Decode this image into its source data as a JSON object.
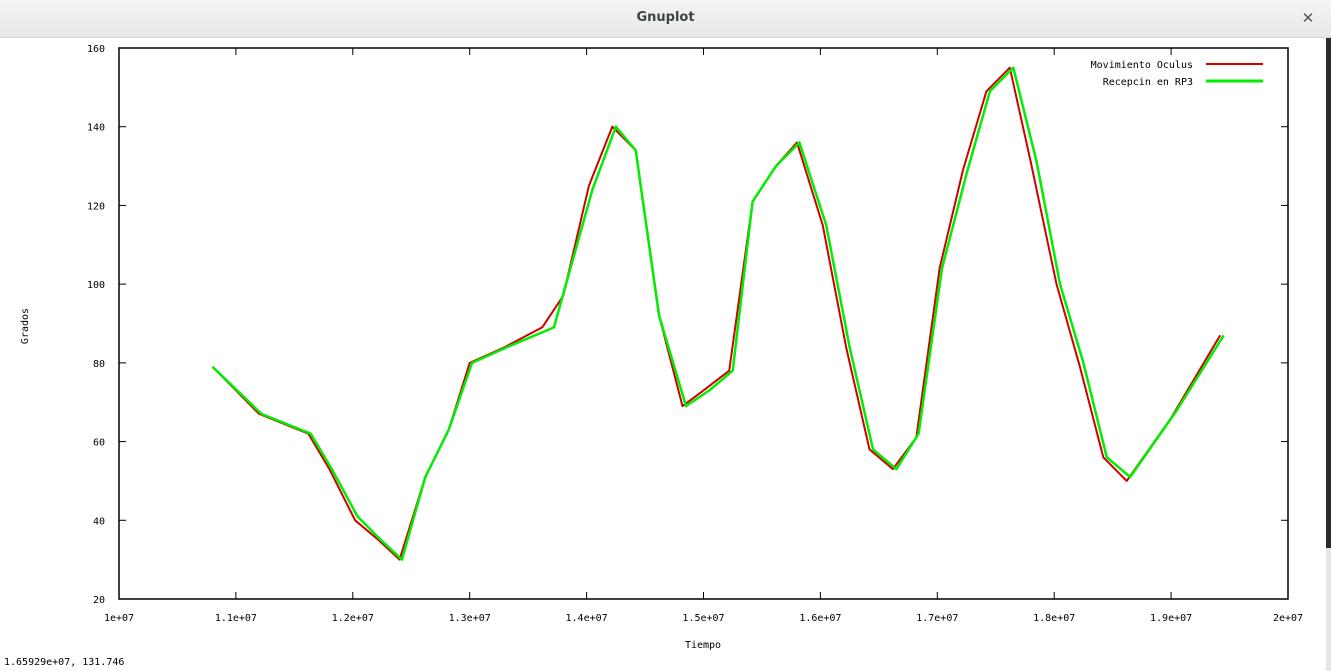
{
  "window": {
    "title": "Gnuplot",
    "close_icon": "close-icon"
  },
  "status": {
    "coords": "1.65929e+07,  131.746"
  },
  "colors": {
    "series1": "#d10000",
    "series2": "#00ee00",
    "axis": "#000000"
  },
  "chart_data": {
    "type": "line",
    "title": "",
    "xlabel": "Tiempo",
    "ylabel": "Grados",
    "xlim": [
      10000000,
      20000000
    ],
    "ylim": [
      20,
      160
    ],
    "x_ticks": [
      10000000,
      11000000,
      12000000,
      13000000,
      14000000,
      15000000,
      16000000,
      17000000,
      18000000,
      19000000,
      20000000
    ],
    "x_tick_labels": [
      "1e+07",
      "1.1e+07",
      "1.2e+07",
      "1.3e+07",
      "1.4e+07",
      "1.5e+07",
      "1.6e+07",
      "1.7e+07",
      "1.8e+07",
      "1.9e+07",
      "2e+07"
    ],
    "y_ticks": [
      20,
      40,
      60,
      80,
      100,
      120,
      140,
      160
    ],
    "y_tick_labels": [
      "20",
      "40",
      "60",
      "80",
      "100",
      "120",
      "140",
      "160"
    ],
    "grid": false,
    "legend_position": "top-right",
    "series": [
      {
        "name": "Movimiento Oculus",
        "color": "#d10000",
        "x": [
          10800000,
          11200000,
          11620000,
          11800000,
          12020000,
          12220000,
          12400000,
          12620000,
          12820000,
          13000000,
          13300000,
          13620000,
          13800000,
          14020000,
          14220000,
          14420000,
          14620000,
          14820000,
          15000000,
          15220000,
          15420000,
          15620000,
          15800000,
          16020000,
          16220000,
          16420000,
          16620000,
          16820000,
          17020000,
          17220000,
          17420000,
          17620000,
          17800000,
          18020000,
          18220000,
          18420000,
          18620000,
          19000000,
          19420000
        ],
        "y": [
          79,
          67,
          62,
          53,
          40,
          35,
          30,
          51,
          63,
          80,
          84,
          89,
          97,
          125,
          140,
          134,
          92,
          69,
          73,
          78,
          121,
          130,
          136,
          115,
          84,
          58,
          53,
          61,
          104,
          129,
          149,
          155,
          131,
          100,
          79,
          56,
          50,
          66,
          87
        ]
      },
      {
        "name": "Recepcin en RP3",
        "color": "#00ee00",
        "x": [
          10800000,
          11220000,
          11640000,
          11820000,
          12040000,
          12240000,
          12420000,
          12620000,
          12820000,
          13020000,
          13320000,
          13720000,
          14050000,
          14250000,
          14420000,
          14620000,
          14850000,
          15050000,
          15250000,
          15420000,
          15620000,
          15820000,
          16050000,
          16250000,
          16450000,
          16650000,
          16840000,
          17040000,
          17250000,
          17450000,
          17650000,
          17850000,
          18050000,
          18250000,
          18450000,
          18650000,
          19050000,
          19450000
        ],
        "y": [
          79,
          67,
          62,
          53,
          41,
          35,
          30,
          51,
          63,
          80,
          84,
          89,
          124,
          140,
          134,
          92,
          69,
          73,
          78,
          121,
          130,
          136,
          115,
          84,
          58,
          53,
          62,
          104,
          128,
          149,
          155,
          131,
          100,
          80,
          56,
          51,
          68,
          87
        ]
      }
    ]
  }
}
